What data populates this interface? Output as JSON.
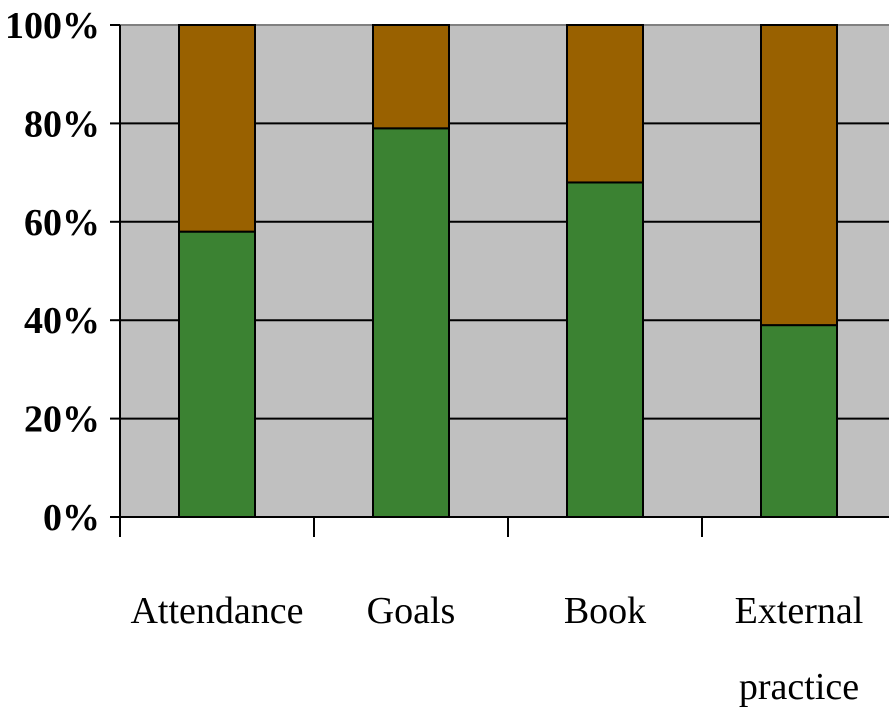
{
  "chart_data": {
    "type": "bar",
    "stacked": true,
    "percent_stacked": true,
    "categories": [
      [
        "Attendance"
      ],
      [
        "Goals"
      ],
      [
        "Book"
      ],
      [
        "External",
        "practice"
      ]
    ],
    "series": [
      {
        "values": [
          58,
          79,
          68,
          39
        ],
        "color": "#3b8232"
      },
      {
        "values": [
          42,
          21,
          32,
          61
        ],
        "color": "#996100"
      }
    ],
    "ylim": [
      0,
      100
    ],
    "yticks": [
      0,
      20,
      40,
      60,
      80,
      100
    ],
    "ytick_labels": [
      "0%",
      "20%",
      "40%",
      "60%",
      "80%",
      "100%"
    ],
    "grid": true,
    "plot_background": "#c0c0c0",
    "legend": "none",
    "title": "",
    "xlabel": "",
    "ylabel": ""
  }
}
